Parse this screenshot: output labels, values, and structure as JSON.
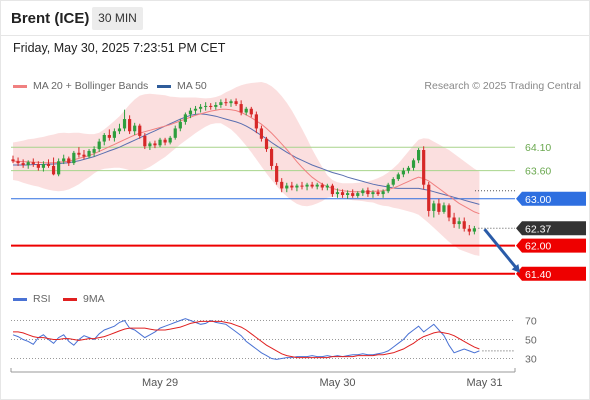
{
  "header": {
    "instrument": "Brent (ICE)",
    "timeframe": "30 MIN"
  },
  "timestamp": "Friday, May 30, 2025 7:23:51 PM CET",
  "copyright": "Research © 2025 Trading Central",
  "legend": {
    "main": [
      {
        "label": "MA 20 + Bollinger Bands",
        "color": "#f08080"
      },
      {
        "label": "MA 50",
        "color": "#2e5c9a"
      }
    ],
    "rsi": [
      {
        "label": "RSI",
        "color": "#4a72d4"
      },
      {
        "label": "9MA",
        "color": "#e02020"
      }
    ]
  },
  "colors": {
    "up": "#2e9e3e",
    "down": "#d62828",
    "band": "#fad4d4",
    "ma20": "#f08080",
    "ma50": "#5a6fb0",
    "pivot": "#2e6fe0",
    "support": "#ee0000",
    "resistance": "#a8d48c",
    "last": "#333333",
    "arrow": "#2a5ba8",
    "rsi": "#4a72d4",
    "rsi_ma": "#e02020"
  },
  "chart_data": [
    {
      "type": "candlestick",
      "title": "Brent (ICE)",
      "interval": "30 MIN",
      "ylim": [
        61.16,
        65.32
      ],
      "x_ticks": [
        {
          "label": "May 29",
          "index": 29
        },
        {
          "label": "May 30",
          "index": 64
        },
        {
          "label": "May 31",
          "index": 93
        }
      ],
      "levels": [
        {
          "label": "64.10",
          "value": 64.1,
          "kind": "resistance"
        },
        {
          "label": "63.60",
          "value": 63.6,
          "kind": "resistance"
        },
        {
          "label": "63.00",
          "value": 63.0,
          "kind": "pivot"
        },
        {
          "label": "62.37",
          "value": 62.37,
          "kind": "last"
        },
        {
          "label": "62.00",
          "value": 62.0,
          "kind": "support"
        },
        {
          "label": "61.40",
          "value": 61.4,
          "kind": "support"
        }
      ],
      "last_price": 62.37,
      "forecast_arrow": {
        "from": {
          "index": 93,
          "value": 62.35
        },
        "to": {
          "index": 100,
          "value": 61.42
        }
      },
      "ohlc": [
        [
          63.84,
          63.92,
          63.76,
          63.8
        ],
        [
          63.8,
          63.88,
          63.7,
          63.76
        ],
        [
          63.76,
          63.84,
          63.66,
          63.72
        ],
        [
          63.72,
          63.82,
          63.64,
          63.78
        ],
        [
          63.78,
          63.86,
          63.68,
          63.74
        ],
        [
          63.74,
          63.8,
          63.6,
          63.66
        ],
        [
          63.66,
          63.8,
          63.58,
          63.74
        ],
        [
          63.74,
          63.84,
          63.66,
          63.7
        ],
        [
          63.7,
          63.88,
          63.5,
          63.52
        ],
        [
          63.52,
          63.86,
          63.48,
          63.8
        ],
        [
          63.8,
          63.94,
          63.74,
          63.86
        ],
        [
          63.86,
          63.9,
          63.7,
          63.76
        ],
        [
          63.76,
          64.02,
          63.72,
          63.98
        ],
        [
          63.98,
          64.1,
          63.88,
          63.94
        ],
        [
          63.94,
          64.04,
          63.84,
          63.9
        ],
        [
          63.9,
          64.06,
          63.86,
          64.02
        ],
        [
          63.98,
          64.12,
          63.9,
          64.06
        ],
        [
          64.06,
          64.28,
          64.0,
          64.22
        ],
        [
          64.22,
          64.4,
          64.14,
          64.36
        ],
        [
          64.36,
          64.48,
          64.24,
          64.3
        ],
        [
          64.3,
          64.5,
          64.22,
          64.44
        ],
        [
          64.44,
          64.6,
          64.38,
          64.5
        ],
        [
          64.5,
          64.9,
          64.44,
          64.7
        ],
        [
          64.7,
          64.78,
          64.38,
          64.44
        ],
        [
          64.44,
          64.62,
          64.36,
          64.56
        ],
        [
          64.56,
          64.6,
          64.28,
          64.34
        ],
        [
          64.34,
          64.4,
          64.06,
          64.12
        ],
        [
          64.12,
          64.22,
          64.04,
          64.18
        ],
        [
          64.18,
          64.24,
          64.08,
          64.14
        ],
        [
          64.14,
          64.3,
          64.1,
          64.26
        ],
        [
          64.26,
          64.3,
          64.14,
          64.2
        ],
        [
          64.2,
          64.34,
          64.16,
          64.3
        ],
        [
          64.3,
          64.56,
          64.26,
          64.5
        ],
        [
          64.5,
          64.7,
          64.44,
          64.64
        ],
        [
          64.64,
          64.84,
          64.58,
          64.8
        ],
        [
          64.8,
          64.94,
          64.72,
          64.88
        ],
        [
          64.88,
          64.98,
          64.8,
          64.92
        ],
        [
          64.92,
          65.02,
          64.84,
          64.96
        ],
        [
          64.96,
          65.06,
          64.88,
          64.98
        ],
        [
          64.98,
          65.04,
          64.9,
          64.96
        ],
        [
          64.96,
          65.06,
          64.9,
          65.0
        ],
        [
          65.0,
          65.12,
          64.94,
          65.06
        ],
        [
          65.06,
          65.14,
          64.98,
          65.04
        ],
        [
          65.04,
          65.12,
          64.96,
          65.08
        ],
        [
          65.08,
          65.14,
          64.98,
          65.02
        ],
        [
          65.02,
          65.1,
          64.78,
          64.84
        ],
        [
          64.84,
          64.96,
          64.78,
          64.92
        ],
        [
          64.92,
          64.96,
          64.74,
          64.8
        ],
        [
          64.8,
          64.86,
          64.4,
          64.5
        ],
        [
          64.5,
          64.56,
          64.22,
          64.28
        ],
        [
          64.28,
          64.32,
          64.0,
          64.06
        ],
        [
          64.06,
          64.1,
          63.62,
          63.7
        ],
        [
          63.7,
          63.76,
          63.3,
          63.36
        ],
        [
          63.36,
          63.44,
          63.14,
          63.22
        ],
        [
          63.22,
          63.34,
          63.14,
          63.28
        ],
        [
          63.28,
          63.36,
          63.18,
          63.24
        ],
        [
          63.24,
          63.32,
          63.16,
          63.28
        ],
        [
          63.28,
          63.36,
          63.2,
          63.26
        ],
        [
          63.26,
          63.34,
          63.18,
          63.3
        ],
        [
          63.3,
          63.36,
          63.22,
          63.26
        ],
        [
          63.26,
          63.34,
          63.2,
          63.3
        ],
        [
          63.3,
          63.34,
          63.18,
          63.24
        ],
        [
          63.24,
          63.32,
          63.18,
          63.28
        ],
        [
          63.28,
          63.32,
          63.04,
          63.1
        ],
        [
          63.1,
          63.22,
          63.02,
          63.14
        ],
        [
          63.14,
          63.2,
          63.02,
          63.08
        ],
        [
          63.08,
          63.18,
          63.0,
          63.12
        ],
        [
          63.12,
          63.2,
          63.02,
          63.06
        ],
        [
          63.06,
          63.16,
          63.02,
          63.12
        ],
        [
          63.12,
          63.22,
          63.06,
          63.18
        ],
        [
          63.18,
          63.24,
          63.04,
          63.1
        ],
        [
          63.1,
          63.18,
          63.02,
          63.14
        ],
        [
          63.14,
          63.2,
          63.06,
          63.1
        ],
        [
          63.1,
          63.2,
          63.02,
          63.16
        ],
        [
          63.16,
          63.34,
          63.12,
          63.3
        ],
        [
          63.3,
          63.46,
          63.26,
          63.42
        ],
        [
          63.42,
          63.56,
          63.38,
          63.52
        ],
        [
          63.52,
          63.66,
          63.46,
          63.6
        ],
        [
          63.6,
          63.7,
          63.54,
          63.66
        ],
        [
          63.66,
          63.86,
          63.6,
          63.82
        ],
        [
          63.82,
          64.08,
          63.76,
          64.04
        ],
        [
          64.04,
          64.12,
          63.2,
          63.3
        ],
        [
          63.3,
          63.36,
          62.62,
          62.74
        ],
        [
          62.74,
          62.96,
          62.6,
          62.9
        ],
        [
          62.9,
          63.0,
          62.66,
          62.72
        ],
        [
          62.72,
          62.92,
          62.68,
          62.86
        ],
        [
          62.86,
          62.9,
          62.52,
          62.6
        ],
        [
          62.6,
          62.7,
          62.38,
          62.46
        ],
        [
          62.46,
          62.6,
          62.36,
          62.52
        ],
        [
          62.52,
          62.6,
          62.3,
          62.36
        ],
        [
          62.36,
          62.44,
          62.22,
          62.3
        ],
        [
          62.3,
          62.42,
          62.24,
          62.37
        ]
      ],
      "ma20": [
        63.8,
        63.8,
        63.79,
        63.79,
        63.78,
        63.78,
        63.77,
        63.77,
        63.77,
        63.78,
        63.79,
        63.8,
        63.83,
        63.86,
        63.89,
        63.92,
        63.96,
        64.01,
        64.06,
        64.11,
        64.16,
        64.21,
        64.26,
        64.31,
        64.36,
        64.4,
        64.43,
        64.46,
        64.49,
        64.52,
        64.55,
        64.58,
        64.62,
        64.66,
        64.7,
        64.74,
        64.78,
        64.81,
        64.84,
        64.87,
        64.89,
        64.91,
        64.91,
        64.9,
        64.88,
        64.84,
        64.79,
        64.73,
        64.66,
        64.59,
        64.5,
        64.4,
        64.29,
        64.17,
        64.05,
        63.92,
        63.79,
        63.67,
        63.56,
        63.46,
        63.38,
        63.31,
        63.26,
        63.22,
        63.19,
        63.17,
        63.16,
        63.15,
        63.15,
        63.15,
        63.15,
        63.16,
        63.16,
        63.17,
        63.2,
        63.23,
        63.27,
        63.32,
        63.37,
        63.42,
        63.46,
        63.43,
        63.38,
        63.3,
        63.22,
        63.14,
        63.06,
        62.98,
        62.9,
        62.84,
        62.78,
        62.72,
        62.68
      ],
      "band_width": [
        0.4,
        0.42,
        0.45,
        0.48,
        0.5,
        0.52,
        0.55,
        0.58,
        0.6,
        0.62,
        0.62,
        0.6,
        0.58,
        0.55,
        0.5,
        0.46,
        0.42,
        0.4,
        0.42,
        0.46,
        0.5,
        0.55,
        0.62,
        0.7,
        0.76,
        0.8,
        0.8,
        0.78,
        0.74,
        0.7,
        0.66,
        0.6,
        0.55,
        0.5,
        0.46,
        0.42,
        0.38,
        0.34,
        0.3,
        0.28,
        0.28,
        0.3,
        0.36,
        0.42,
        0.5,
        0.58,
        0.66,
        0.74,
        0.82,
        0.9,
        0.96,
        1.0,
        1.02,
        1.02,
        1.0,
        0.96,
        0.9,
        0.82,
        0.72,
        0.6,
        0.48,
        0.36,
        0.24,
        0.18,
        0.16,
        0.16,
        0.17,
        0.18,
        0.19,
        0.2,
        0.22,
        0.24,
        0.28,
        0.32,
        0.36,
        0.42,
        0.48,
        0.56,
        0.64,
        0.72,
        0.8,
        0.86,
        0.9,
        0.92,
        0.94,
        0.96,
        0.98,
        0.98,
        0.98,
        0.96,
        0.94,
        0.92,
        0.9
      ],
      "ma50": [
        63.72,
        63.72,
        63.72,
        63.72,
        63.73,
        63.73,
        63.73,
        63.74,
        63.74,
        63.75,
        63.76,
        63.77,
        63.79,
        63.81,
        63.84,
        63.87,
        63.9,
        63.94,
        63.98,
        64.02,
        64.06,
        64.1,
        64.15,
        64.2,
        64.25,
        64.3,
        64.35,
        64.4,
        64.45,
        64.5,
        64.55,
        64.6,
        64.65,
        64.7,
        64.74,
        64.78,
        64.8,
        64.81,
        64.8,
        64.78,
        64.76,
        64.73,
        64.7,
        64.67,
        64.64,
        64.6,
        64.55,
        64.49,
        64.42,
        64.35,
        64.28,
        64.2,
        64.13,
        64.06,
        63.99,
        63.93,
        63.87,
        63.82,
        63.77,
        63.72,
        63.68,
        63.64,
        63.6,
        63.56,
        63.53,
        63.5,
        63.46,
        63.43,
        63.4,
        63.37,
        63.34,
        63.31,
        63.29,
        63.27,
        63.25,
        63.23,
        63.22,
        63.22,
        63.22,
        63.22,
        63.22,
        63.2,
        63.18,
        63.15,
        63.12,
        63.09,
        63.06,
        63.03,
        63.0,
        62.97,
        62.94,
        62.91,
        62.88
      ]
    },
    {
      "type": "line",
      "title": "RSI",
      "ylim": [
        20,
        80
      ],
      "y_ticks": [
        {
          "label": "70",
          "value": 70
        },
        {
          "label": "50",
          "value": 50
        },
        {
          "label": "30",
          "value": 30
        }
      ],
      "series": [
        {
          "name": "RSI",
          "values": [
            55,
            53,
            50,
            48,
            45,
            52,
            55,
            50,
            46,
            52,
            55,
            48,
            44,
            50,
            54,
            52,
            50,
            56,
            60,
            62,
            64,
            68,
            70,
            62,
            60,
            56,
            52,
            55,
            58,
            62,
            64,
            66,
            68,
            70,
            72,
            70,
            68,
            66,
            67,
            70,
            68,
            67,
            66,
            62,
            58,
            54,
            48,
            44,
            40,
            36,
            33,
            30,
            29,
            30,
            31,
            31,
            32,
            32,
            32,
            33,
            32,
            32,
            33,
            32,
            33,
            32,
            33,
            34,
            34,
            35,
            34,
            34,
            35,
            36,
            38,
            42,
            46,
            50,
            56,
            60,
            64,
            58,
            62,
            66,
            60,
            54,
            44,
            36,
            38,
            40,
            38,
            36,
            38
          ]
        },
        {
          "name": "9MA",
          "values": [
            58,
            58,
            57,
            55,
            53,
            52,
            52,
            51,
            50,
            50,
            51,
            51,
            50,
            49,
            50,
            51,
            51,
            52,
            53,
            55,
            57,
            59,
            61,
            62,
            62,
            62,
            62,
            61,
            60,
            60,
            60,
            61,
            62,
            63,
            65,
            67,
            68,
            69,
            69,
            69,
            69,
            69,
            68,
            67,
            65,
            63,
            60,
            56,
            52,
            48,
            44,
            41,
            38,
            35,
            33,
            32,
            31,
            31,
            31,
            31,
            31,
            31,
            31,
            32,
            32,
            32,
            32,
            32,
            33,
            33,
            33,
            33,
            34,
            34,
            35,
            36,
            38,
            40,
            43,
            46,
            50,
            53,
            55,
            57,
            58,
            57,
            56,
            54,
            51,
            48,
            45,
            42,
            40
          ]
        }
      ],
      "x_count": 93
    }
  ]
}
